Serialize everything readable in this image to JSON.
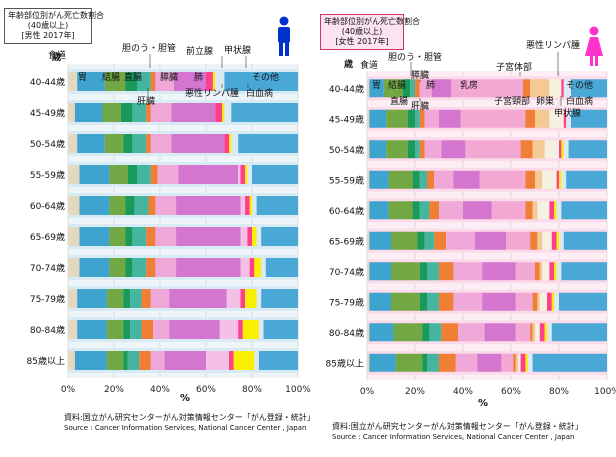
{
  "chart_data": [
    {
      "type": "bar",
      "stacked": "horizontal-100%",
      "title": "年齢部位別がん死亡数割合\n(40歳以上)\n[男性 2017年]",
      "title_lines": [
        "年齢部位別がん死亡数割合",
        "(40歳以上)",
        "[男性 2017年]"
      ],
      "ylabel": "歳",
      "xlabel": "%",
      "xlim": [
        0,
        100
      ],
      "x_ticks": [
        "0%",
        "20%",
        "40%",
        "60%",
        "80%",
        "100%"
      ],
      "categories": [
        "40-44歳",
        "45-49歳",
        "50-54歳",
        "55-59歳",
        "60-64歳",
        "65-69歳",
        "70-74歳",
        "75-79歳",
        "80-84歳",
        "85歳以上"
      ],
      "series": [
        {
          "name": "食道",
          "color": "#e3d8c0",
          "values": [
            4,
            3,
            4,
            5,
            5,
            5,
            5,
            4,
            4,
            3
          ]
        },
        {
          "name": "胃",
          "color": "#3fa3cf",
          "values": [
            12,
            12,
            12,
            13,
            13,
            13,
            13,
            13,
            13,
            14
          ]
        },
        {
          "name": "結腸",
          "color": "#72a843",
          "values": [
            9,
            8,
            8,
            8,
            7,
            7,
            7,
            7,
            7,
            7
          ]
        },
        {
          "name": "直腸",
          "color": "#1a9a5a",
          "values": [
            5,
            5,
            4,
            4,
            4,
            3,
            3,
            3,
            3,
            2
          ]
        },
        {
          "name": "肝臓",
          "color": "#45b5a0",
          "values": [
            6,
            6,
            6,
            6,
            6,
            6,
            6,
            5,
            5,
            5
          ]
        },
        {
          "name": "胆のう・胆管",
          "color": "#f07f36",
          "values": [
            2,
            2,
            2,
            3,
            3,
            4,
            4,
            4,
            5,
            5
          ]
        },
        {
          "name": "膵臓",
          "color": "#f0a8d8",
          "values": [
            8,
            9,
            9,
            9,
            9,
            9,
            9,
            8,
            7,
            6
          ]
        },
        {
          "name": "肺",
          "color": "#d476d0",
          "values": [
            14,
            19,
            23,
            26,
            28,
            28,
            28,
            25,
            22,
            18
          ]
        },
        {
          "name": "前立腺",
          "color": "#f5c0e6",
          "values": [
            0,
            0,
            0,
            1,
            2,
            3,
            4,
            6,
            8,
            10
          ]
        },
        {
          "name": "悪性リンパ腫",
          "color": "#ff3f8c",
          "values": [
            3,
            3,
            2,
            2,
            2,
            2,
            2,
            2,
            2,
            2
          ]
        },
        {
          "name": "甲状腺",
          "color": "#f8f000",
          "values": [
            1,
            1,
            1,
            1,
            1,
            2,
            3,
            5,
            7,
            9
          ]
        },
        {
          "name": "白血病",
          "color": "#dde9f2",
          "values": [
            4,
            3,
            3,
            2,
            2,
            2,
            2,
            2,
            2,
            2
          ]
        },
        {
          "name": "その他",
          "color": "#4aa8d6",
          "values": [
            32,
            29,
            26,
            20,
            18,
            16,
            14,
            16,
            15,
            17
          ]
        }
      ],
      "annotations": [
        "食道",
        "胃",
        "結腸",
        "直腸",
        "肝臓",
        "胆のう・胆管",
        "膵臓",
        "肺",
        "前立腺",
        "甲状腺",
        "悪性リンパ腫",
        "白血病",
        "その他"
      ],
      "source": "資料:国立がん研究センターがん対策情報センター「がん登録・統計」",
      "source_en": "Source : Cancer Information Services, National Cancer Center , Japan",
      "icon": "male-icon",
      "accent": "#0033cc"
    },
    {
      "type": "bar",
      "stacked": "horizontal-100%",
      "title": "年齢部位別がん死亡数割合\n(40歳以上)\n[女性 2017年]",
      "title_lines": [
        "年齢部位別がん死亡数割合",
        "(40歳以上)",
        "[女性 2017年]"
      ],
      "ylabel": "歳",
      "xlabel": "%",
      "xlim": [
        0,
        100
      ],
      "x_ticks": [
        "0%",
        "20%",
        "40%",
        "60%",
        "80%",
        "100%"
      ],
      "categories": [
        "40-44歳",
        "45-49歳",
        "50-54歳",
        "55-59歳",
        "60-64歳",
        "65-69歳",
        "70-74歳",
        "75-79歳",
        "80-84歳",
        "85歳以上"
      ],
      "series": [
        {
          "name": "食道",
          "color": "#e3d8c0",
          "values": [
            1,
            1,
            1,
            1,
            1,
            1,
            1,
            1,
            1,
            1
          ]
        },
        {
          "name": "胃",
          "color": "#3fa3cf",
          "values": [
            6,
            7,
            7,
            8,
            8,
            9,
            9,
            9,
            10,
            11
          ]
        },
        {
          "name": "結腸",
          "color": "#72a843",
          "values": [
            8,
            9,
            9,
            10,
            10,
            11,
            12,
            12,
            12,
            11
          ]
        },
        {
          "name": "直腸",
          "color": "#1a9a5a",
          "values": [
            3,
            3,
            3,
            3,
            3,
            3,
            3,
            3,
            3,
            2
          ]
        },
        {
          "name": "肝臓",
          "color": "#45b5a0",
          "values": [
            2,
            2,
            2,
            3,
            4,
            4,
            5,
            5,
            5,
            5
          ]
        },
        {
          "name": "胆のう・胆管",
          "color": "#f07f36",
          "values": [
            2,
            2,
            2,
            3,
            4,
            5,
            6,
            6,
            7,
            7
          ]
        },
        {
          "name": "膵臓",
          "color": "#f0a8d8",
          "values": [
            5,
            6,
            7,
            8,
            10,
            12,
            12,
            12,
            11,
            9
          ]
        },
        {
          "name": "肺",
          "color": "#d476d0",
          "values": [
            8,
            9,
            10,
            11,
            12,
            13,
            14,
            14,
            13,
            10
          ]
        },
        {
          "name": "乳房",
          "color": "#f3a8d4",
          "values": [
            30,
            27,
            23,
            19,
            14,
            10,
            8,
            7,
            6,
            5
          ]
        },
        {
          "name": "子宮体部",
          "color": "#f07f36",
          "values": [
            3,
            4,
            5,
            4,
            3,
            3,
            2,
            2,
            1,
            1
          ]
        },
        {
          "name": "子宮頸部",
          "color": "#f4c994",
          "values": [
            8,
            6,
            5,
            3,
            2,
            2,
            1,
            1,
            1,
            1
          ]
        },
        {
          "name": "卵巣",
          "color": "#f4f1e0",
          "values": [
            5,
            6,
            6,
            6,
            5,
            4,
            3,
            3,
            2,
            1
          ]
        },
        {
          "name": "悪性リンパ腫",
          "color": "#ff3f8c",
          "values": [
            1,
            1,
            1,
            1,
            2,
            2,
            2,
            2,
            2,
            2
          ]
        },
        {
          "name": "甲状腺",
          "color": "#f8f000",
          "values": [
            0,
            0,
            1,
            1,
            1,
            1,
            1,
            1,
            1,
            1
          ]
        },
        {
          "name": "白血病",
          "color": "#dde9f2",
          "values": [
            3,
            2,
            2,
            2,
            2,
            2,
            2,
            2,
            2,
            2
          ]
        },
        {
          "name": "その他",
          "color": "#4aa8d6",
          "values": [
            15,
            15,
            16,
            17,
            19,
            18,
            19,
            20,
            23,
            31
          ]
        }
      ],
      "annotations": [
        "食道",
        "胃",
        "結腸",
        "直腸",
        "肝臓",
        "胆のう・胆管",
        "膵臓",
        "肺",
        "乳房",
        "子宮体部",
        "子宮頸部",
        "卵巣",
        "悪性リンパ腫",
        "甲状腺",
        "白血病",
        "その他"
      ],
      "source": "資料:国立がん研究センターがん対策情報センター「がん登録・統計」",
      "source_en": "Source : Cancer Information Services, National Cancer Center , Japan",
      "icon": "female-icon",
      "accent": "#ff33cc"
    }
  ]
}
